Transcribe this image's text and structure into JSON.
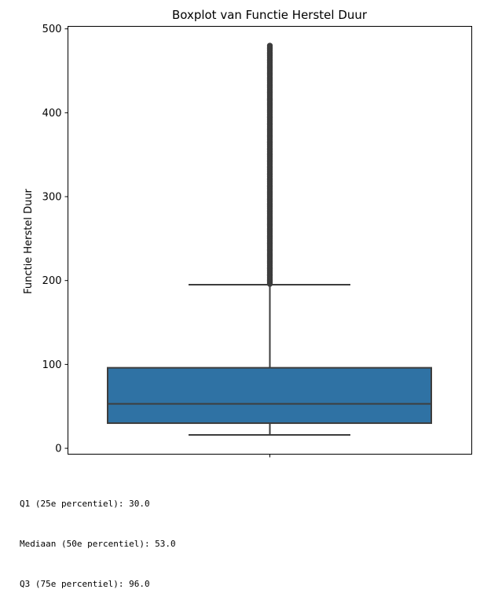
{
  "chart_data": {
    "type": "box",
    "title": "Boxplot van Functie Herstel Duur",
    "xlabel": "",
    "ylabel": "Functie Herstel Duur",
    "ylim": [
      -7,
      503
    ],
    "yticks": [
      0,
      100,
      200,
      300,
      400,
      500
    ],
    "grid": false,
    "box": {
      "q1": 30.0,
      "median": 53.0,
      "q3": 96.0,
      "whisker_low": 16,
      "whisker_high": 195,
      "outlier_min": 195,
      "outlier_max": 480,
      "color": "#2f72a4",
      "edge_color": "#3d3d3d"
    }
  },
  "stats": {
    "q1_line": "Q1 (25e percentiel): 30.0",
    "median_line": "Mediaan (50e percentiel): 53.0",
    "q3_line": "Q3 (75e percentiel): 96.0"
  }
}
